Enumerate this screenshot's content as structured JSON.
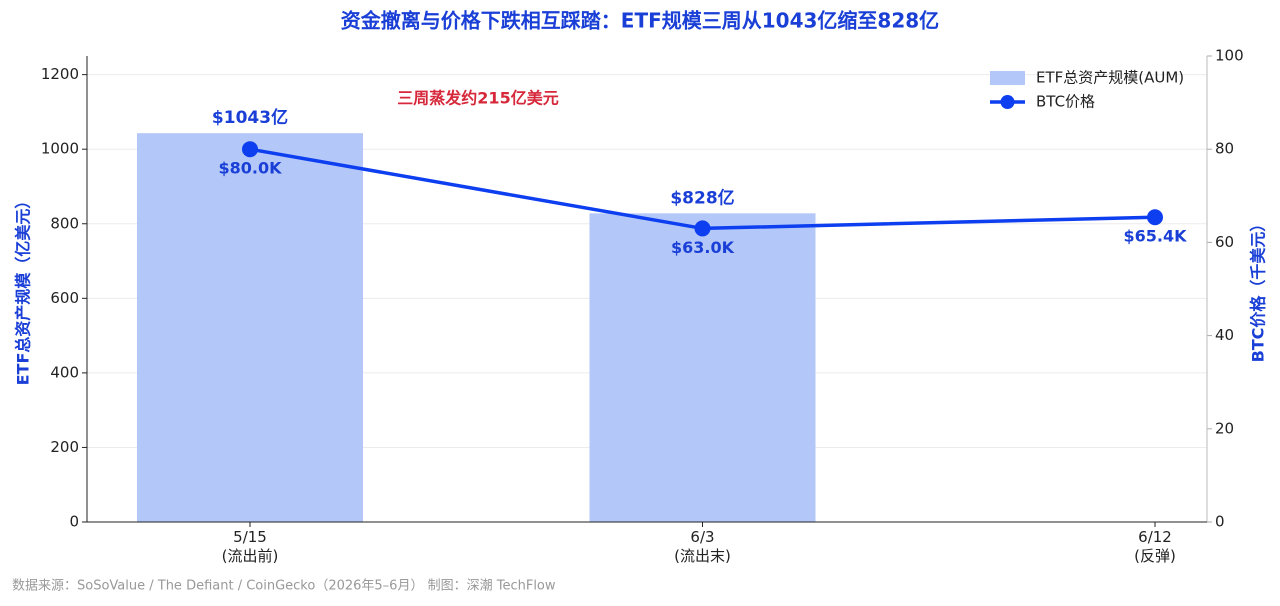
{
  "chart_data": {
    "type": "bar",
    "title": "资金撤离与价格下跌相互踩踏：ETF规模三周从1043亿缩至828亿",
    "annotation": "三周蒸发约215亿美元",
    "source": "数据来源：SoSoValue / The Defiant / CoinGecko（2026年5–6月）  制图：深潮 TechFlow",
    "y_label": "ETF总资产规模（亿美元）",
    "y2_label": "BTC价格（千美元）",
    "categories": [
      "5/15\n(流出前)",
      "6/3\n(流出末)",
      "6/12\n(反弹)"
    ],
    "series": [
      {
        "name": "ETF总资产规模(AUM)",
        "type": "bar",
        "color": "#b3c8f8",
        "values": [
          1043,
          828,
          null
        ],
        "value_labels": [
          "$1043亿",
          "$828亿",
          null
        ]
      },
      {
        "name": "BTC价格",
        "type": "line",
        "axis": "y2",
        "color": "#0d3ff0",
        "values": [
          80.0,
          63.0,
          65.4
        ],
        "value_labels": [
          "$80.0K",
          "$63.0K",
          "$65.4K"
        ]
      }
    ],
    "ylim": [
      0,
      1250
    ],
    "yticks": [
      0,
      200,
      400,
      600,
      800,
      1000,
      1200
    ],
    "y2lim": [
      0,
      100
    ],
    "y2ticks": [
      0,
      20,
      40,
      60,
      80,
      100
    ],
    "grid": true,
    "legend": "upper right"
  }
}
